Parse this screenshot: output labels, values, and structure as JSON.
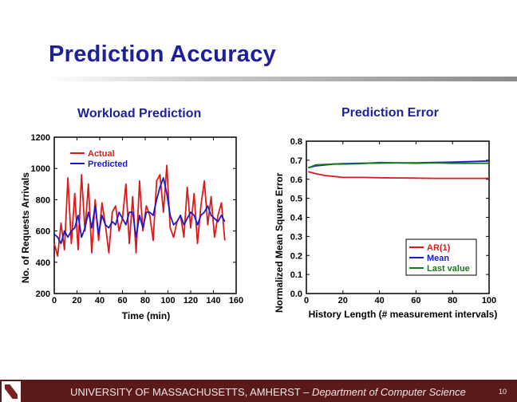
{
  "slide": {
    "title": "Prediction Accuracy",
    "footer": {
      "university": "UNIVERSITY OF MASSACHUSETTS, AMHERST",
      "separator": " – ",
      "department": "Department of Computer Science",
      "page": "10"
    }
  },
  "chart_data": [
    {
      "type": "line",
      "title": "Workload Prediction",
      "xlabel": "Time (min)",
      "ylabel": "No. of Requests Arrivals",
      "xlim": [
        0,
        160
      ],
      "ylim": [
        200,
        1200
      ],
      "xticks": [
        0,
        20,
        40,
        60,
        80,
        100,
        120,
        140,
        160
      ],
      "yticks": [
        200,
        400,
        600,
        800,
        1000,
        1200
      ],
      "legend": "top-left",
      "grid": false,
      "series": [
        {
          "name": "Actual",
          "color": "#dd1a1a",
          "x": [
            0,
            3,
            6,
            9,
            12,
            15,
            18,
            21,
            24,
            27,
            30,
            33,
            36,
            39,
            42,
            45,
            48,
            51,
            54,
            57,
            60,
            63,
            66,
            69,
            72,
            75,
            78,
            81,
            84,
            87,
            90,
            93,
            96,
            99,
            102,
            105,
            108,
            111,
            114,
            117,
            120,
            123,
            126,
            129,
            132,
            135,
            138,
            141,
            144,
            147,
            150
          ],
          "y": [
            520,
            440,
            650,
            480,
            940,
            520,
            840,
            480,
            960,
            600,
            900,
            460,
            800,
            540,
            780,
            640,
            460,
            720,
            760,
            600,
            680,
            900,
            520,
            820,
            460,
            920,
            600,
            760,
            700,
            540,
            920,
            960,
            720,
            1020,
            620,
            560,
            660,
            700,
            560,
            880,
            620,
            840,
            520,
            760,
            920,
            640,
            820,
            560,
            700,
            780,
            540
          ]
        },
        {
          "name": "Predicted",
          "color": "#1a1acc",
          "x": [
            0,
            3,
            6,
            9,
            12,
            15,
            18,
            21,
            24,
            27,
            30,
            33,
            36,
            39,
            42,
            45,
            48,
            51,
            54,
            57,
            60,
            63,
            66,
            69,
            72,
            75,
            78,
            81,
            84,
            87,
            90,
            93,
            96,
            99,
            102,
            105,
            108,
            111,
            114,
            117,
            120,
            123,
            126,
            129,
            132,
            135,
            138,
            141,
            144,
            147,
            150
          ],
          "y": [
            580,
            560,
            520,
            600,
            560,
            600,
            620,
            700,
            560,
            620,
            720,
            620,
            760,
            580,
            700,
            640,
            620,
            660,
            640,
            720,
            680,
            640,
            720,
            720,
            560,
            700,
            620,
            720,
            720,
            700,
            800,
            880,
            940,
            840,
            700,
            640,
            660,
            700,
            640,
            680,
            720,
            700,
            640,
            700,
            720,
            760,
            700,
            680,
            660,
            700,
            660
          ]
        }
      ]
    },
    {
      "type": "line",
      "title": "Prediction Error",
      "xlabel": "History Length (# measurement intervals)",
      "ylabel": "Normalized Mean Square Error",
      "xlim": [
        0,
        100
      ],
      "ylim": [
        0,
        0.8
      ],
      "xticks": [
        0,
        20,
        40,
        60,
        80,
        100
      ],
      "yticks": [
        0,
        0.1,
        0.2,
        0.3,
        0.4,
        0.5,
        0.6,
        0.7,
        0.8
      ],
      "legend": "bottom-right",
      "grid": false,
      "series": [
        {
          "name": "AR(1)",
          "color": "#dd1a1a",
          "x": [
            1,
            5,
            10,
            15,
            20,
            30,
            40,
            50,
            60,
            70,
            80,
            90,
            100
          ],
          "y": [
            0.64,
            0.63,
            0.62,
            0.615,
            0.61,
            0.61,
            0.608,
            0.607,
            0.606,
            0.605,
            0.605,
            0.605,
            0.605
          ]
        },
        {
          "name": "Mean",
          "color": "#1a1acc",
          "x": [
            1,
            5,
            10,
            15,
            20,
            30,
            40,
            50,
            60,
            70,
            80,
            90,
            100
          ],
          "y": [
            0.66,
            0.67,
            0.675,
            0.68,
            0.682,
            0.684,
            0.685,
            0.686,
            0.686,
            0.688,
            0.69,
            0.693,
            0.696
          ]
        },
        {
          "name": "Last value",
          "color": "#1a7a1a",
          "x": [
            1,
            5,
            10,
            15,
            20,
            30,
            40,
            50,
            60,
            70,
            80,
            90,
            100
          ],
          "y": [
            0.66,
            0.675,
            0.678,
            0.68,
            0.68,
            0.682,
            0.688,
            0.686,
            0.684,
            0.686,
            0.684,
            0.684,
            0.684
          ]
        }
      ]
    }
  ]
}
